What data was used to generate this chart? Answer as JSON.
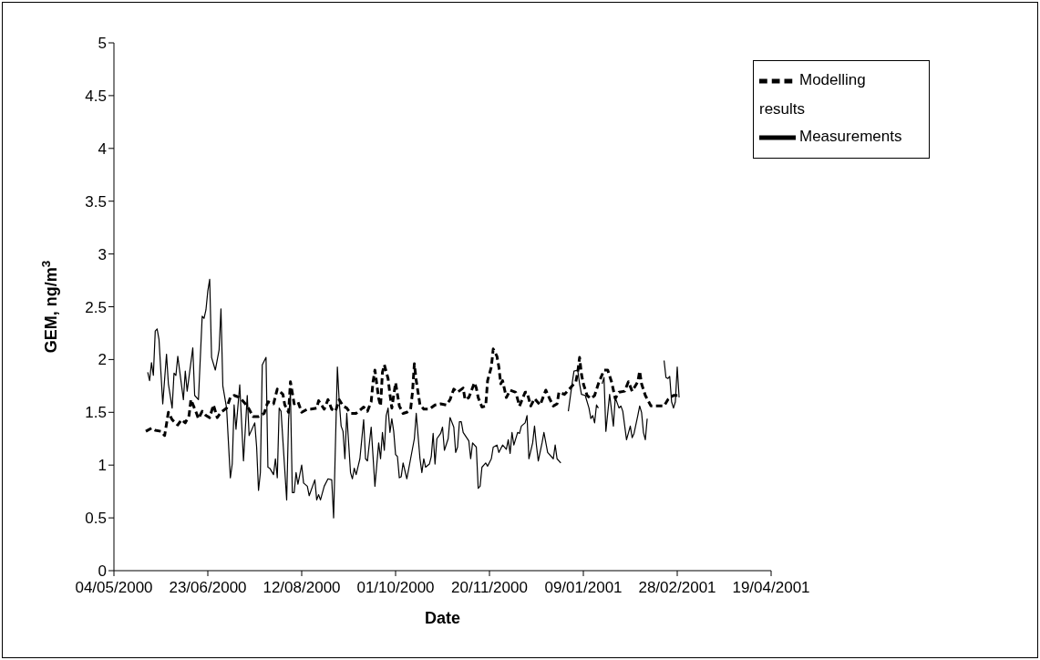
{
  "chart_data": {
    "type": "line",
    "xlabel": "Date",
    "ylabel": "GEM, ng/m$^{3}$",
    "xlim": [
      "2000-05-04",
      "2001-04-19"
    ],
    "xticks": [
      {
        "value": "2000-05-04",
        "label": "04/05/2000"
      },
      {
        "value": "2000-06-23",
        "label": "23/06/2000"
      },
      {
        "value": "2000-08-12",
        "label": "12/08/2000"
      },
      {
        "value": "2000-10-01",
        "label": "01/10/2000"
      },
      {
        "value": "2000-11-20",
        "label": "20/11/2000"
      },
      {
        "value": "2001-01-09",
        "label": "09/01/2001"
      },
      {
        "value": "2001-02-28",
        "label": "28/02/2001"
      },
      {
        "value": "2001-04-19",
        "label": "19/04/2001"
      }
    ],
    "ylim": [
      0,
      5
    ],
    "yticks": [
      0,
      0.5,
      1,
      1.5,
      2,
      2.5,
      3,
      3.5,
      4,
      4.5,
      5
    ],
    "legend": "top right",
    "marker": "none",
    "series": [
      {
        "name": "Modelling results",
        "color": "#000000",
        "line_style": "dashed",
        "x": [
          "2000-05-21",
          "2000-05-24",
          "2000-05-26",
          "2000-05-29",
          "2000-05-31",
          "2000-06-02",
          "2000-06-04",
          "2000-06-07",
          "2000-06-09",
          "2000-06-11",
          "2000-06-13",
          "2000-06-14",
          "2000-06-17",
          "2000-06-18",
          "2000-06-20",
          "2000-06-22",
          "2000-06-24",
          "2000-06-26",
          "2000-06-28",
          "2000-06-30",
          "2000-07-03",
          "2000-07-05",
          "2000-07-07",
          "2000-07-10",
          "2000-07-13",
          "2000-07-15",
          "2000-07-17",
          "2000-07-20",
          "2000-07-23",
          "2000-07-25",
          "2000-07-28",
          "2000-07-30",
          "2000-08-02",
          "2000-08-03",
          "2000-08-05",
          "2000-08-06",
          "2000-08-08",
          "2000-08-10",
          "2000-08-12",
          "2000-08-15",
          "2000-08-17",
          "2000-08-20",
          "2000-08-21",
          "2000-08-24",
          "2000-08-26",
          "2000-08-28",
          "2000-08-30",
          "2000-09-01",
          "2000-09-03",
          "2000-09-05",
          "2000-09-07",
          "2000-09-10",
          "2000-09-14",
          "2000-09-16",
          "2000-09-18",
          "2000-09-19",
          "2000-09-20",
          "2000-09-22",
          "2000-09-23",
          "2000-09-24",
          "2000-09-25",
          "2000-09-27",
          "2000-09-28",
          "2000-09-29",
          "2000-10-01",
          "2000-10-03",
          "2000-10-05",
          "2000-10-07",
          "2000-10-09",
          "2000-10-10",
          "2000-10-11",
          "2000-10-12",
          "2000-10-14",
          "2000-10-16",
          "2000-10-19",
          "2000-10-22",
          "2000-10-25",
          "2000-10-28",
          "2000-10-30",
          "2000-11-01",
          "2000-11-03",
          "2000-11-06",
          "2000-11-07",
          "2000-11-09",
          "2000-11-12",
          "2000-11-13",
          "2000-11-14",
          "2000-11-16",
          "2000-11-18",
          "2000-11-19",
          "2000-11-21",
          "2000-11-22",
          "2000-11-24",
          "2000-11-25",
          "2000-11-26",
          "2000-11-27",
          "2000-11-29",
          "2000-12-01",
          "2000-12-04",
          "2000-12-06",
          "2000-12-09",
          "2000-12-10",
          "2000-12-12",
          "2000-12-14",
          "2000-12-17",
          "2000-12-20",
          "2000-12-22",
          "2000-12-24",
          "2000-12-26",
          "2000-12-27",
          "2000-12-30",
          "2001-01-02",
          "2001-01-05",
          "2001-01-06",
          "2001-01-07",
          "2001-01-08",
          "2001-01-09",
          "2001-01-11",
          "2001-01-13",
          "2001-01-15",
          "2001-01-17",
          "2001-01-20",
          "2001-01-22",
          "2001-01-24",
          "2001-01-26",
          "2001-01-28",
          "2001-01-31",
          "2001-02-02",
          "2001-02-04",
          "2001-02-07",
          "2001-02-08",
          "2001-02-09",
          "2001-02-11",
          "2001-02-14",
          "2001-02-17",
          "2001-02-21",
          "2001-02-23",
          "2001-02-26",
          "2001-03-01"
        ],
        "values": [
          1.32,
          1.35,
          1.33,
          1.32,
          1.28,
          1.5,
          1.43,
          1.38,
          1.43,
          1.4,
          1.47,
          1.62,
          1.49,
          1.44,
          1.51,
          1.47,
          1.45,
          1.57,
          1.45,
          1.5,
          1.54,
          1.64,
          1.66,
          1.64,
          1.58,
          1.53,
          1.46,
          1.46,
          1.49,
          1.6,
          1.58,
          1.72,
          1.67,
          1.57,
          1.5,
          1.79,
          1.58,
          1.6,
          1.5,
          1.53,
          1.53,
          1.54,
          1.61,
          1.53,
          1.62,
          1.53,
          1.51,
          1.62,
          1.56,
          1.54,
          1.49,
          1.49,
          1.55,
          1.51,
          1.6,
          1.79,
          1.9,
          1.63,
          1.56,
          1.88,
          1.95,
          1.82,
          1.67,
          1.54,
          1.78,
          1.56,
          1.49,
          1.5,
          1.53,
          1.69,
          1.96,
          1.8,
          1.57,
          1.53,
          1.53,
          1.57,
          1.58,
          1.57,
          1.62,
          1.72,
          1.69,
          1.73,
          1.62,
          1.64,
          1.78,
          1.73,
          1.64,
          1.55,
          1.56,
          1.8,
          1.93,
          2.1,
          2.03,
          1.93,
          1.77,
          1.8,
          1.64,
          1.71,
          1.69,
          1.56,
          1.69,
          1.69,
          1.56,
          1.63,
          1.57,
          1.71,
          1.63,
          1.56,
          1.58,
          1.69,
          1.67,
          1.73,
          1.79,
          1.88,
          2.02,
          1.86,
          1.77,
          1.66,
          1.63,
          1.66,
          1.77,
          1.9,
          1.9,
          1.79,
          1.63,
          1.69,
          1.7,
          1.79,
          1.7,
          1.79,
          1.89,
          1.77,
          1.66,
          1.56,
          1.56,
          1.56,
          1.62,
          1.66,
          1.66
        ]
      },
      {
        "name": "Measurements",
        "color": "#000000",
        "line_style": "solid",
        "x": [
          "2000-05-22",
          "2000-05-23",
          "2000-05-24",
          "2000-05-25",
          "2000-05-26",
          "2000-05-27",
          "2000-05-28",
          "2000-05-30",
          "2000-06-01",
          "2000-06-02",
          "2000-06-04",
          "2000-06-05",
          "2000-06-06",
          "2000-06-07",
          "2000-06-10",
          "2000-06-11",
          "2000-06-12",
          "2000-06-15",
          "2000-06-16",
          "2000-06-18",
          "2000-06-20",
          "2000-06-21",
          "2000-06-22",
          "2000-06-23",
          "2000-06-24",
          "2000-06-25",
          "2000-06-27",
          "2000-06-29",
          "2000-06-30",
          "2000-07-01",
          "2000-07-03",
          "2000-07-05",
          "2000-07-06",
          "2000-07-07",
          "2000-07-08",
          "2000-07-10",
          "2000-07-12",
          "2000-07-14",
          "2000-07-15",
          "2000-07-18",
          "2000-07-19",
          "2000-07-20",
          "2000-07-21",
          "2000-07-22",
          "2000-07-24",
          "2000-07-25",
          "2000-07-26",
          "2000-07-28",
          "2000-07-29",
          "2000-07-30",
          "2000-07-31",
          "2000-08-01",
          "2000-08-04",
          "2000-08-05",
          "2000-08-06",
          "2000-08-07",
          "2000-08-08",
          "2000-08-09",
          "2000-08-10",
          "2000-08-12",
          "2000-08-13",
          "2000-08-15",
          "2000-08-16",
          "2000-08-19",
          "2000-08-20",
          "2000-08-21",
          "2000-08-22",
          "2000-08-24",
          "2000-08-26",
          "2000-08-28",
          "2000-08-29",
          "2000-08-31",
          "2000-09-01",
          "2000-09-02",
          "2000-09-03",
          "2000-09-04",
          "2000-09-05",
          "2000-09-07",
          "2000-09-08",
          "2000-09-09",
          "2000-09-10",
          "2000-09-12",
          "2000-09-14",
          "2000-09-15",
          "2000-09-16",
          "2000-09-18",
          "2000-09-20",
          "2000-09-22",
          "2000-09-23",
          "2000-09-24",
          "2000-09-25",
          "2000-09-26",
          "2000-09-27",
          "2000-09-28",
          "2000-09-29",
          "2000-09-30",
          "2000-10-01",
          "2000-10-02",
          "2000-10-03",
          "2000-10-04",
          "2000-10-05",
          "2000-10-07",
          "2000-10-09",
          "2000-10-11",
          "2000-10-12",
          "2000-10-14",
          "2000-10-15",
          "2000-10-16",
          "2000-10-17",
          "2000-10-19",
          "2000-10-20",
          "2000-10-21",
          "2000-10-22",
          "2000-10-23",
          "2000-10-25",
          "2000-10-26",
          "2000-10-27",
          "2000-10-29",
          "2000-10-30",
          "2000-11-01",
          "2000-11-02",
          "2000-11-03",
          "2000-11-04",
          "2000-11-05",
          "2000-11-06",
          "2000-11-09",
          "2000-11-10",
          "2000-11-11",
          "2000-11-13",
          "2000-11-14",
          "2000-11-15",
          "2000-11-16",
          "2000-11-18",
          "2000-11-19",
          "2000-11-21",
          "2000-11-22",
          "2000-11-24",
          "2000-11-25",
          "2000-11-27",
          "2000-11-29",
          "2000-11-30",
          "2000-12-01",
          "2000-12-02",
          "2000-12-03",
          "2000-12-05",
          "2000-12-06",
          "2000-12-07",
          "2000-12-09",
          "2000-12-10",
          "2000-12-11",
          "2000-12-13",
          "2000-12-14",
          "2000-12-15",
          "2000-12-16",
          "2000-12-18",
          "2000-12-19",
          "2000-12-21",
          "2000-12-24",
          "2000-12-25",
          "2000-12-26",
          "2000-12-28",
          "2000-12-31",
          "2001-01-01",
          "2001-01-03",
          "2001-01-04",
          "2001-01-06",
          "2001-01-07",
          "2001-01-08",
          "2001-01-10",
          "2001-01-12",
          "2001-01-13",
          "2001-01-14",
          "2001-01-15",
          "2001-01-16",
          "2001-01-17",
          "2001-01-18",
          "2001-01-19",
          "2001-01-20",
          "2001-01-21",
          "2001-01-23",
          "2001-01-25",
          "2001-01-26",
          "2001-01-28",
          "2001-01-29",
          "2001-01-30",
          "2001-02-01",
          "2001-02-03",
          "2001-02-04",
          "2001-02-05",
          "2001-02-07",
          "2001-02-08",
          "2001-02-09",
          "2001-02-10",
          "2001-02-11",
          "2001-02-12",
          "2001-02-14",
          "2001-02-21",
          "2001-02-22",
          "2001-02-23",
          "2001-02-24",
          "2001-02-25",
          "2001-02-26",
          "2001-02-27",
          "2001-02-28",
          "2001-03-01"
        ],
        "values": [
          1.88,
          1.8,
          1.97,
          1.85,
          2.27,
          2.29,
          2.19,
          1.58,
          2.05,
          1.77,
          1.54,
          1.87,
          1.85,
          2.03,
          1.62,
          1.89,
          1.7,
          2.11,
          1.66,
          1.62,
          2.41,
          2.39,
          2.47,
          2.65,
          2.76,
          2.02,
          1.9,
          2.09,
          2.48,
          1.75,
          1.54,
          0.88,
          1.01,
          1.57,
          1.34,
          1.76,
          1.04,
          1.66,
          1.28,
          1.4,
          1.17,
          0.76,
          0.93,
          1.95,
          2.02,
          0.98,
          0.97,
          0.91,
          1.06,
          0.88,
          1.54,
          1.51,
          0.67,
          1.43,
          1.69,
          0.74,
          0.74,
          0.93,
          0.82,
          1.0,
          0.83,
          0.8,
          0.71,
          0.86,
          0.67,
          0.72,
          0.67,
          0.8,
          0.87,
          0.86,
          0.5,
          1.93,
          1.6,
          1.37,
          1.32,
          1.06,
          1.49,
          0.93,
          0.87,
          0.97,
          0.91,
          1.06,
          1.43,
          1.06,
          1.04,
          1.36,
          0.8,
          1.21,
          1.06,
          1.31,
          1.14,
          1.47,
          1.54,
          1.31,
          1.44,
          1.32,
          1.1,
          1.08,
          0.88,
          0.89,
          1.02,
          0.87,
          1.06,
          1.25,
          1.49,
          1.06,
          0.93,
          1.06,
          0.98,
          1.01,
          1.08,
          1.3,
          1.01,
          1.25,
          1.3,
          1.36,
          1.14,
          1.25,
          1.45,
          1.36,
          1.12,
          1.17,
          1.41,
          1.41,
          1.31,
          1.23,
          1.06,
          1.21,
          1.17,
          0.78,
          0.8,
          0.98,
          1.02,
          0.99,
          1.06,
          1.17,
          1.19,
          1.12,
          1.19,
          1.15,
          1.24,
          1.11,
          1.31,
          1.19,
          1.31,
          1.3,
          1.37,
          1.4,
          1.47,
          1.06,
          1.21,
          1.37,
          1.19,
          1.04,
          1.21,
          1.31,
          1.12,
          1.06,
          1.19,
          1.06,
          1.02,
          null,
          1.51,
          1.77,
          1.89,
          1.9,
          1.77,
          1.67,
          1.66,
          1.54,
          1.44,
          1.47,
          1.4,
          1.57,
          1.54,
          null,
          1.77,
          1.83,
          1.32,
          1.67,
          1.37,
          1.64,
          1.54,
          1.56,
          1.51,
          1.24,
          1.37,
          1.26,
          1.3,
          1.47,
          1.56,
          1.5,
          1.31,
          1.24,
          1.44,
          null,
          1.99,
          1.83,
          1.82,
          1.84,
          1.6,
          1.54,
          1.6,
          1.93,
          1.64
        ]
      }
    ]
  }
}
